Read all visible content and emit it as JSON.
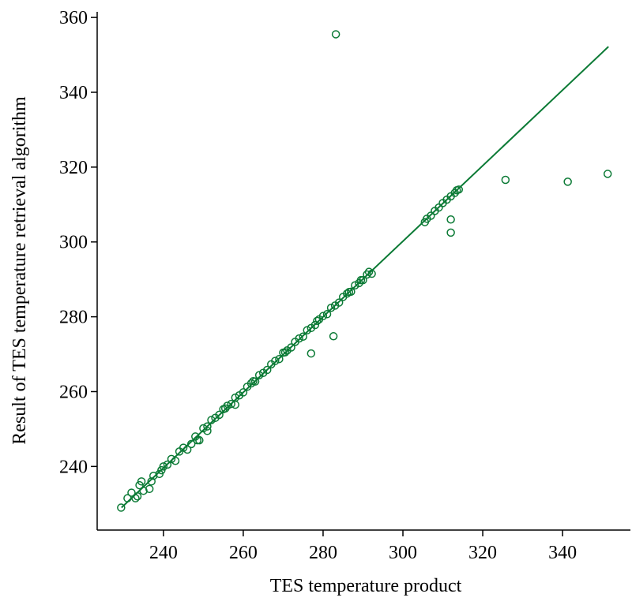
{
  "chart_data": {
    "type": "scatter",
    "xlabel": "TES temperature product",
    "ylabel": "Result of TES temperature retrieval algorithm",
    "xlim": [
      223.4,
      357
    ],
    "ylim": [
      223,
      361.5
    ],
    "xticks": [
      240,
      260,
      280,
      300,
      320,
      340
    ],
    "yticks": [
      240,
      260,
      280,
      300,
      320,
      340,
      360
    ],
    "series": [
      {
        "color": "#0b7a35",
        "x": [
          229.4,
          231,
          232,
          233,
          233.5,
          234,
          234.5,
          235,
          236.5,
          237,
          237.5,
          239,
          239.5,
          240,
          241,
          242,
          243,
          244,
          245,
          246,
          247,
          248,
          248.5,
          249,
          250,
          251,
          251,
          252,
          253,
          254,
          255,
          255.5,
          256,
          257,
          258,
          258,
          259,
          260,
          261,
          262,
          262.5,
          263,
          264,
          265,
          266,
          267,
          268,
          269,
          270,
          270.5,
          271,
          272,
          273,
          274,
          275,
          276,
          277,
          278,
          278.5,
          279,
          280,
          281,
          282,
          283,
          284,
          285,
          286,
          286.5,
          287,
          288,
          289,
          289.5,
          290,
          291,
          291.5,
          305.5,
          306,
          307,
          308,
          309,
          310,
          311,
          312,
          313,
          313.5,
          314,
          283.2,
          325.7,
          341.3,
          351.3,
          312,
          312,
          282.6,
          277,
          292.2
        ],
        "y": [
          229,
          231.5,
          233,
          231.5,
          232,
          235,
          236,
          233.5,
          234,
          236,
          237.5,
          238,
          239,
          240,
          240.5,
          242,
          241.5,
          244,
          245,
          244.5,
          246,
          248,
          247,
          247,
          250.2,
          250.7,
          249.5,
          252.4,
          253,
          253.8,
          255.3,
          255.5,
          256.2,
          256.7,
          258.4,
          256.5,
          259,
          259.8,
          261.3,
          262.2,
          262.8,
          262.7,
          264.4,
          265,
          265.8,
          267.3,
          268.2,
          268.7,
          270.4,
          270.5,
          271,
          271.8,
          273.3,
          274.2,
          274.7,
          276.4,
          277,
          277.8,
          278.9,
          279.3,
          280.2,
          280.7,
          282.4,
          283,
          283.8,
          285.3,
          286.2,
          286.6,
          286.7,
          288.4,
          289,
          289.8,
          289.8,
          291.3,
          292,
          305.3,
          306.2,
          307,
          308.3,
          309.2,
          310.4,
          311.3,
          312.2,
          313.1,
          313.8,
          314,
          355.5,
          316.6,
          316.1,
          318.2,
          306,
          302.5,
          274.8,
          270.2,
          291.5
        ]
      }
    ],
    "line": {
      "color": "#0b7a35",
      "x": [
        229.5,
        351.5
      ],
      "y": [
        229,
        352.2
      ]
    }
  }
}
